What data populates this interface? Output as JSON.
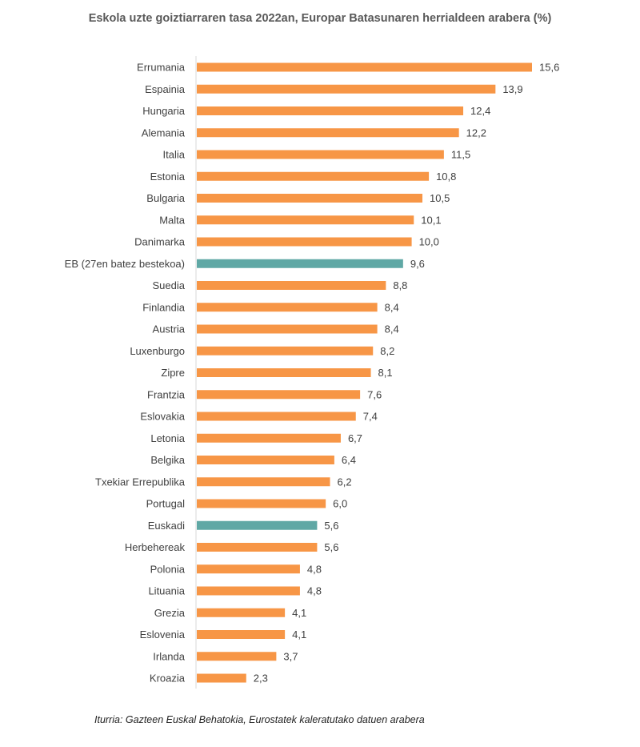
{
  "chart_data": {
    "type": "bar",
    "orientation": "horizontal",
    "title": "Eskola uzte goiztiarraren tasa 2022an, Europar Batasunaren herrialdeen arabera (%)",
    "source": "Iturria: Gazteen Euskal Behatokia, Eurostatek kaleratutako datuen arabera",
    "categories": [
      "Errumania",
      "Espainia",
      "Hungaria",
      "Alemania",
      "Italia",
      "Estonia",
      "Bulgaria",
      "Malta",
      "Danimarka",
      "EB (27en batez bestekoa)",
      "Suedia",
      "Finlandia",
      "Austria",
      "Luxenburgo",
      "Zipre",
      "Frantzia",
      "Eslovakia",
      "Letonia",
      "Belgika",
      "Txekiar Errepublika",
      "Portugal",
      "Euskadi",
      "Herbehereak",
      "Polonia",
      "Lituania",
      "Grezia",
      "Eslovenia",
      "Irlanda",
      "Kroazia"
    ],
    "values": [
      15.6,
      13.9,
      12.4,
      12.2,
      11.5,
      10.8,
      10.5,
      10.1,
      10.0,
      9.6,
      8.8,
      8.4,
      8.4,
      8.2,
      8.1,
      7.6,
      7.4,
      6.7,
      6.4,
      6.2,
      6.0,
      5.6,
      5.6,
      4.8,
      4.8,
      4.1,
      4.1,
      3.7,
      2.3
    ],
    "data_labels": [
      "15,6",
      "13,9",
      "12,4",
      "12,2",
      "11,5",
      "10,8",
      "10,5",
      "10,1",
      "10,0",
      "9,6",
      "8,8",
      "8,4",
      "8,4",
      "8,2",
      "8,1",
      "7,6",
      "7,4",
      "6,7",
      "6,4",
      "6,2",
      "6,0",
      "5,6",
      "5,6",
      "4,8",
      "4,8",
      "4,1",
      "4,1",
      "3,7",
      "2,3"
    ],
    "highlighted": [
      "EB (27en batez bestekoa)",
      "Euskadi"
    ],
    "colors": {
      "default": "#F79646",
      "highlight": "#5FA8A5",
      "axis": "#D9D9D9",
      "label": "#404040"
    },
    "grid": false,
    "legend": "none"
  }
}
